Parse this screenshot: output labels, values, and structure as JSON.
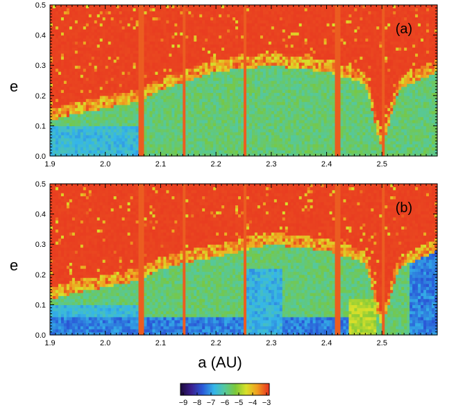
{
  "chart_data": [
    {
      "type": "heatmap",
      "panel_label": "(a)",
      "ylabel": "e",
      "xlabel": "",
      "xlim": [
        1.9,
        2.6
      ],
      "ylim": [
        0.0,
        0.5
      ],
      "xticks": [
        "1.9",
        "2.0",
        "2.1",
        "2.2",
        "2.3",
        "2.4",
        "2.5"
      ],
      "yticks": [
        "0.0",
        "0.1",
        "0.2",
        "0.3",
        "0.4",
        "0.5"
      ],
      "resonances_a": [
        2.065,
        2.143,
        2.253,
        2.42,
        2.502
      ],
      "stable_region_top_e": [
        {
          "a": 1.9,
          "e": 0.14
        },
        {
          "a": 2.0,
          "e": 0.18
        },
        {
          "a": 2.06,
          "e": 0.2
        },
        {
          "a": 2.1,
          "e": 0.24
        },
        {
          "a": 2.2,
          "e": 0.3
        },
        {
          "a": 2.3,
          "e": 0.32
        },
        {
          "a": 2.4,
          "e": 0.3
        },
        {
          "a": 2.47,
          "e": 0.26
        },
        {
          "a": 2.5,
          "e": 0.04
        },
        {
          "a": 2.53,
          "e": 0.24
        },
        {
          "a": 2.6,
          "e": 0.3
        }
      ]
    },
    {
      "type": "heatmap",
      "panel_label": "(b)",
      "ylabel": "e",
      "xlabel": "a (AU)",
      "xlim": [
        1.9,
        2.6
      ],
      "ylim": [
        0.0,
        0.5
      ],
      "xticks": [
        "1.9",
        "2.0",
        "2.1",
        "2.2",
        "2.3",
        "2.4",
        "2.5"
      ],
      "yticks": [
        "0.0",
        "0.1",
        "0.2",
        "0.3",
        "0.4",
        "0.5"
      ],
      "resonances_a": [
        2.065,
        2.143,
        2.253,
        2.42,
        2.502
      ],
      "stable_region_top_e": [
        {
          "a": 1.9,
          "e": 0.14
        },
        {
          "a": 2.0,
          "e": 0.18
        },
        {
          "a": 2.06,
          "e": 0.2
        },
        {
          "a": 2.1,
          "e": 0.24
        },
        {
          "a": 2.2,
          "e": 0.28
        },
        {
          "a": 2.3,
          "e": 0.32
        },
        {
          "a": 2.4,
          "e": 0.3
        },
        {
          "a": 2.47,
          "e": 0.26
        },
        {
          "a": 2.5,
          "e": 0.04
        },
        {
          "a": 2.53,
          "e": 0.24
        },
        {
          "a": 2.6,
          "e": 0.3
        }
      ]
    }
  ],
  "colorbar": {
    "ticks": [
      "−9",
      "−8",
      "−7",
      "−6",
      "−5",
      "−4",
      "−3"
    ],
    "range": [
      -9,
      -3
    ],
    "colors": [
      "#1b0a3a",
      "#3a1e8c",
      "#2a5ad8",
      "#35b6e8",
      "#56c89a",
      "#7cc83a",
      "#d8e02a",
      "#f0a020",
      "#e83020"
    ]
  }
}
